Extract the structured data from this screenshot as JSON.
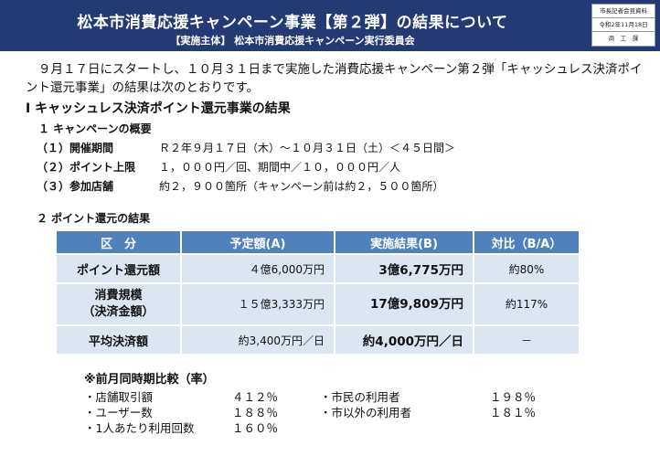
{
  "header": {
    "title": "松本市消費応援キャンペーン事業【第２弾】の結果について",
    "subtitle": "【実施主体】 松本市消費応援キャンペーン実行委員会",
    "meta": [
      "市長記者会見資料",
      "令和2年11月18日",
      "商　工　課"
    ]
  },
  "intro": "９月１７日にスタートし、１０月３１日まで実施した消費応援キャンペーン第２弾「キャッシュレス決済ポイント還元事業」の結果は次のとおりです。",
  "section1": {
    "title": "Ⅰ キャッシュレス決済ポイント還元事業の結果",
    "sub1": "１ キャンペーンの概要",
    "items": [
      {
        "key": "（１）開催期間",
        "value": "Ｒ２年９月１７日（木）～１０月３１日（土）＜４５日間＞"
      },
      {
        "key": "（２）ポイント上限",
        "value": "１，０００円／回、期間中／１０，０００円／人"
      },
      {
        "key": "（３）参加店舗",
        "value": "約２，９００箇所（キャンペーン前は約２，５００箇所）"
      }
    ],
    "sub2": "２ ポイント還元の結果"
  },
  "table": {
    "headers": [
      "区　分",
      "予定額(A)",
      "実施結果(B)",
      "対比（B/A）"
    ],
    "rows": [
      {
        "label": "ポイント還元額",
        "label2": "",
        "plan": "４億6,000万円",
        "result": "3億6,775万円",
        "ratio": "約80%"
      },
      {
        "label": "消費規模",
        "label2": "（決済金額）",
        "plan": "１５億3,333万円",
        "result": "17億9,809万円",
        "ratio": "約117%"
      },
      {
        "label": "平均決済額",
        "label2": "",
        "plan": "約3,400万円／日",
        "result": "約4,000万円／日",
        "ratio": "－"
      }
    ]
  },
  "comparison": {
    "title": "※前月同時期比較（率）",
    "left": [
      {
        "label": "・店舗取引額",
        "value": "４１２％"
      },
      {
        "label": "・ユーザー数",
        "value": "１８８％"
      },
      {
        "label": "・1人あたり利用回数",
        "value": "１６０％"
      }
    ],
    "right": [
      {
        "label": "・市民の利用者",
        "value": "１９８％"
      },
      {
        "label": "・市以外の利用者",
        "value": "１８１％"
      }
    ]
  }
}
